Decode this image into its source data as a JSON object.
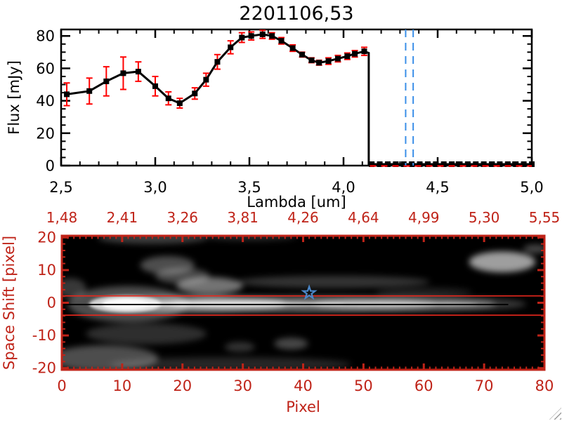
{
  "window": {
    "background": "#ffffff"
  },
  "resize_grip": {
    "present": true
  },
  "chart_data": [
    {
      "type": "line",
      "panel": "spectrum",
      "title": "2201106,53",
      "xlabel": "Lambda [um]",
      "ylabel": "Flux [mJy]",
      "xlim": [
        2.5,
        5.0
      ],
      "ylim": [
        0,
        84
      ],
      "x_major_ticks": [
        2.5,
        3.0,
        3.5,
        4.0,
        4.5,
        5.0
      ],
      "x_tick_labels": [
        "2,5",
        "3,0",
        "3,5",
        "4,0",
        "4,5",
        "5,0"
      ],
      "x_minor_step": 0.1,
      "y_major_ticks": [
        0,
        20,
        40,
        60,
        80
      ],
      "y_tick_labels": [
        "0",
        "20",
        "40",
        "60",
        "80"
      ],
      "y_minor_step": 5,
      "axis_color": "#000000",
      "error_bar_color": "#ff0000",
      "marker": "filled-square",
      "series": [
        {
          "name": "flux",
          "color": "#000000",
          "points_lambda_flux_err": [
            [
              2.53,
              44,
              7
            ],
            [
              2.65,
              46,
              8
            ],
            [
              2.74,
              52,
              9
            ],
            [
              2.83,
              57,
              10
            ],
            [
              2.91,
              58,
              6
            ],
            [
              3.0,
              49,
              6
            ],
            [
              3.07,
              41.5,
              4
            ],
            [
              3.13,
              38.5,
              3
            ],
            [
              3.21,
              44.5,
              3.5
            ],
            [
              3.27,
              53,
              4
            ],
            [
              3.33,
              64,
              4.5
            ],
            [
              3.4,
              73,
              4
            ],
            [
              3.46,
              79,
              3
            ],
            [
              3.51,
              80,
              2.5
            ],
            [
              3.57,
              81,
              2.5
            ],
            [
              3.62,
              80,
              2
            ],
            [
              3.67,
              77,
              2
            ],
            [
              3.73,
              72.5,
              2
            ],
            [
              3.78,
              68.5,
              1.5
            ],
            [
              3.83,
              65,
              1.5
            ],
            [
              3.87,
              63.5,
              1.5
            ],
            [
              3.92,
              64.5,
              2
            ],
            [
              3.97,
              66,
              2
            ],
            [
              4.02,
              67.5,
              2
            ],
            [
              4.06,
              69,
              2
            ],
            [
              4.11,
              70.5,
              2.5
            ]
          ]
        }
      ],
      "drop_lambda": 4.134,
      "zero_tail": {
        "lambda_start": 4.15,
        "lambda_end": 5.0,
        "n_points": 21,
        "flux": 0
      },
      "zero_dashed_line": {
        "color": "#ff0000",
        "flux": 0,
        "lambda_range": [
          4.14,
          5.0
        ]
      },
      "vertical_dashed_lines": {
        "color": "#3a8fe8",
        "lambdas": [
          4.33,
          4.37
        ]
      }
    },
    {
      "type": "heatmap",
      "panel": "spectral-image",
      "xlabel": "Pixel",
      "ylabel": "Space Shift [pixel]",
      "axis_color": "#bf2318",
      "line_color": "#e8271c",
      "xlim": [
        0,
        80
      ],
      "ylim": [
        -20.5,
        20.5
      ],
      "x_major_ticks": [
        0,
        10,
        20,
        30,
        40,
        50,
        60,
        70,
        80
      ],
      "x_tick_labels": [
        "0",
        "10",
        "20",
        "30",
        "40",
        "50",
        "60",
        "70",
        "80"
      ],
      "top_axis_labels": [
        "1,48",
        "2,41",
        "3,26",
        "3,81",
        "4,26",
        "4,64",
        "4,99",
        "5,30",
        "5,55"
      ],
      "x_minor_step": 1,
      "y_major_ticks": [
        20,
        10,
        0,
        -10,
        -20
      ],
      "y_tick_labels": [
        "20",
        "10",
        "0",
        "-10",
        "-20"
      ],
      "y_minor_step": 2,
      "background_gray": "#000000",
      "aperture_lines": {
        "color": "#e8271c",
        "shifts": [
          2.1,
          -3.8
        ]
      },
      "trace_line": {
        "color": "#000000",
        "shift": -0.55,
        "pixel_range": [
          0,
          74
        ]
      },
      "star_marker": {
        "color": "#4a86c8",
        "pixel": 41,
        "shift": 3.0
      },
      "blobs_diffuse": [
        [
          11,
          -0.4,
          10,
          5.5,
          0.3
        ],
        [
          22,
          -0.4,
          15,
          2.5,
          0.5
        ],
        [
          40,
          -0.4,
          22,
          2.3,
          0.45
        ],
        [
          57,
          -0.4,
          15,
          2.1,
          0.38
        ],
        [
          69,
          -0.4,
          8,
          1.7,
          0.22
        ],
        [
          24.5,
          5.2,
          5.5,
          2.6,
          0.45
        ],
        [
          20,
          8.2,
          4.5,
          2.4,
          0.28
        ],
        [
          45,
          6.4,
          16,
          1.9,
          0.2
        ],
        [
          17.5,
          11.5,
          4.5,
          2.8,
          0.3
        ],
        [
          15,
          19.8,
          9,
          1.8,
          0.24
        ],
        [
          31,
          20.4,
          8,
          1.4,
          0.16
        ],
        [
          73,
          12.5,
          5.5,
          3.2,
          0.62
        ],
        [
          78.5,
          16.5,
          2,
          1.3,
          0.28
        ],
        [
          7,
          -17,
          9,
          4,
          0.3
        ],
        [
          28,
          -18.8,
          20,
          2.2,
          0.15
        ],
        [
          14,
          -9.5,
          10,
          3.2,
          0.18
        ],
        [
          38,
          -12.5,
          2.8,
          1.8,
          0.28
        ],
        [
          29.5,
          -13.5,
          2.5,
          1.5,
          0.2
        ],
        [
          1.5,
          4.5,
          2.5,
          3,
          0.22
        ],
        [
          60,
          3.2,
          8,
          1.4,
          0.13
        ]
      ],
      "blobs_core": [
        [
          10.5,
          -0.4,
          6,
          2.6,
          0.75
        ],
        [
          10.5,
          -0.4,
          3.8,
          1.5,
          1.0
        ],
        [
          27,
          -0.4,
          20,
          0.85,
          0.55
        ],
        [
          55,
          -0.4,
          14,
          0.7,
          0.35
        ]
      ]
    }
  ]
}
